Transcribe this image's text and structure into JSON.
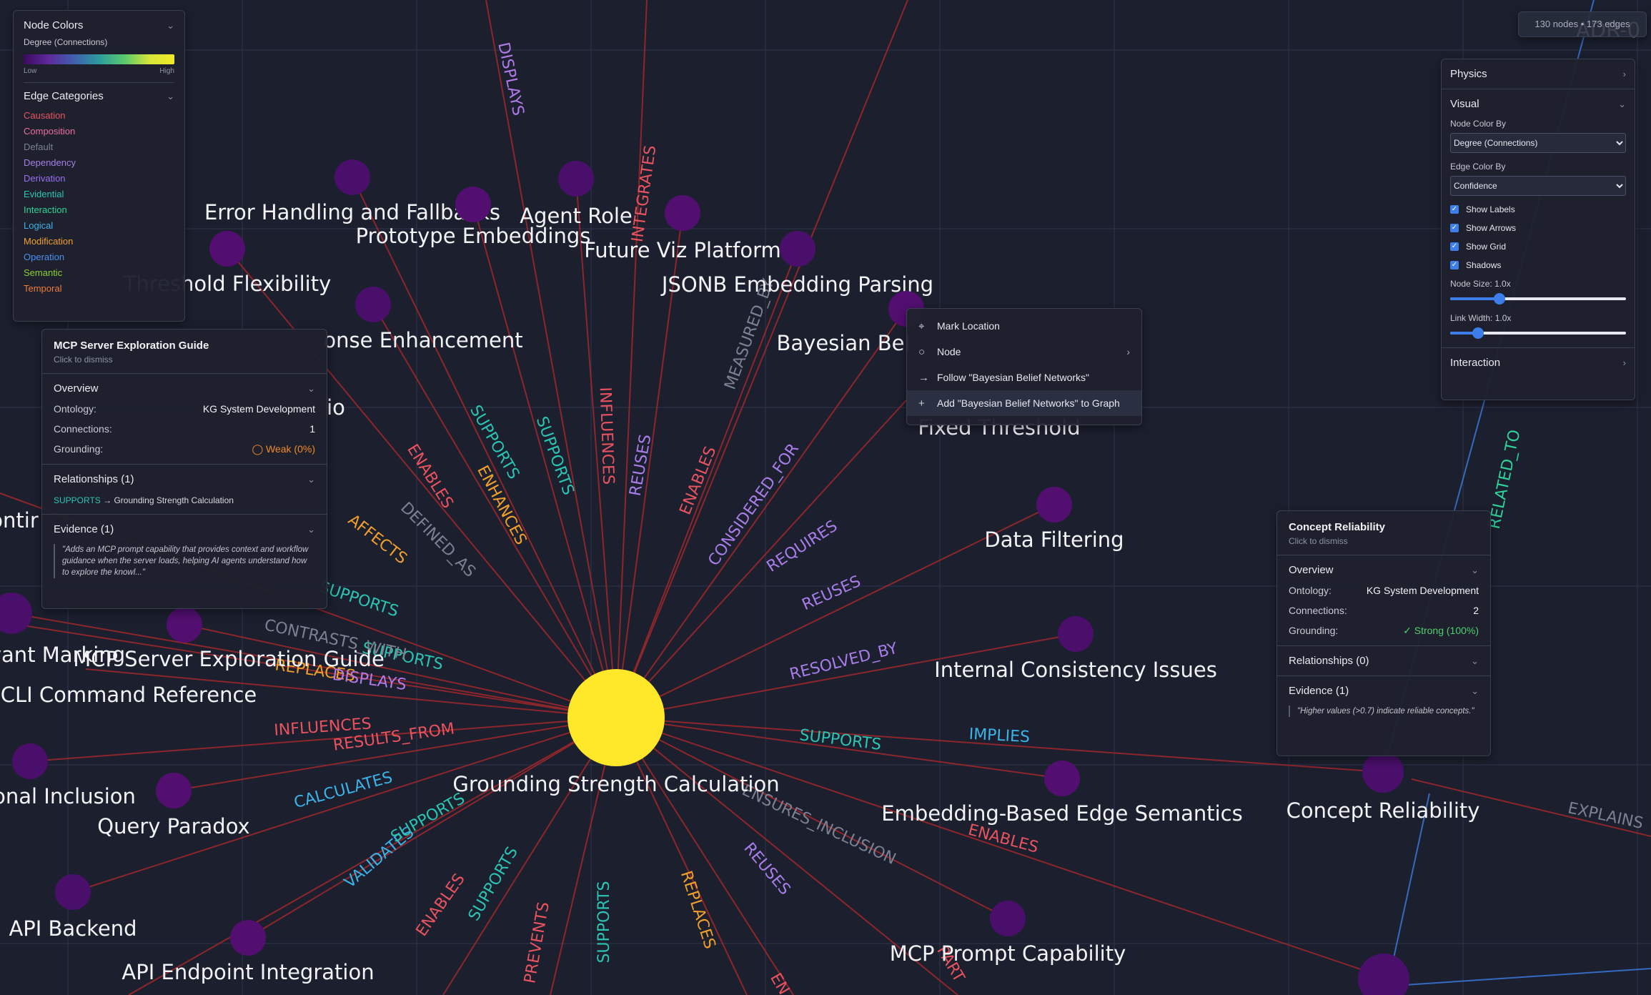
{
  "stats": "130 nodes • 173 edges",
  "legend": {
    "node_colors_title": "Node Colors",
    "metric": "Degree (Connections)",
    "low": "Low",
    "high": "High",
    "edge_categories_title": "Edge Categories",
    "categories": [
      {
        "label": "Causation",
        "color": "#e8535f"
      },
      {
        "label": "Composition",
        "color": "#ec6d9e"
      },
      {
        "label": "Default",
        "color": "#7c8192"
      },
      {
        "label": "Dependency",
        "color": "#a77de8"
      },
      {
        "label": "Derivation",
        "color": "#9a6ef0"
      },
      {
        "label": "Evidential",
        "color": "#29c4b2"
      },
      {
        "label": "Interaction",
        "color": "#2fd39a"
      },
      {
        "label": "Logical",
        "color": "#3bb3e8"
      },
      {
        "label": "Modification",
        "color": "#f0a02a"
      },
      {
        "label": "Operation",
        "color": "#4b8ff0"
      },
      {
        "label": "Semantic",
        "color": "#8ccf2e"
      },
      {
        "label": "Temporal",
        "color": "#f07a3a"
      }
    ]
  },
  "mcp_panel": {
    "title": "MCP Server Exploration Guide",
    "hint": "Click to dismiss",
    "overview": "Overview",
    "ontology_label": "Ontology:",
    "ontology": "KG System Development",
    "connections_label": "Connections:",
    "connections": "1",
    "grounding_label": "Grounding:",
    "grounding": "◯ Weak (0%)",
    "relationships": "Relationships (1)",
    "rel_type": "SUPPORTS",
    "rel_target": "→ Grounding Strength Calculation",
    "evidence": "Evidence (1)",
    "quote": "\"Adds an MCP prompt capability that provides context and workflow guidance when the server loads, helping AI agents understand how to explore the knowl...\""
  },
  "cr_panel": {
    "title": "Concept Reliability",
    "hint": "Click to dismiss",
    "overview": "Overview",
    "ontology_label": "Ontology:",
    "ontology": "KG System Development",
    "connections_label": "Connections:",
    "connections": "2",
    "grounding_label": "Grounding:",
    "grounding": "✓ Strong (100%)",
    "relationships": "Relationships (0)",
    "evidence": "Evidence (1)",
    "quote": "\"Higher values (>0.7) indicate reliable concepts.\""
  },
  "context_menu": {
    "mark": "Mark Location",
    "node": "Node",
    "follow": "Follow \"Bayesian Belief Networks\"",
    "add": "Add \"Bayesian Belief Networks\" to Graph"
  },
  "settings": {
    "physics": "Physics",
    "visual": "Visual",
    "node_color_by_label": "Node Color By",
    "node_color_by": "Degree (Connections)",
    "edge_color_by_label": "Edge Color By",
    "edge_color_by": "Confidence",
    "show_labels": "Show Labels",
    "show_arrows": "Show Arrows",
    "show_grid": "Show Grid",
    "shadows": "Shadows",
    "node_size": "Node Size: 1.0x",
    "node_size_level": 0.28,
    "link_width": "Link Width: 1.0x",
    "link_width_level": 0.16,
    "interaction": "Interaction"
  },
  "graph": {
    "center": {
      "label": "Grounding Strength Calculation",
      "color": "#ffe82a"
    },
    "nodes": [
      {
        "label": "Error Handling and Fallbacks"
      },
      {
        "label": "Prototype Embeddings"
      },
      {
        "label": "Agent Role"
      },
      {
        "label": "Future Viz Platform"
      },
      {
        "label": "JSONB Embedding Parsing"
      },
      {
        "label": "Threshold Flexibility"
      },
      {
        "label": "onse Enhancement"
      },
      {
        "label": "Bayesian Bel"
      },
      {
        "label": "Fixed Threshold"
      },
      {
        "label": "Data Filtering"
      },
      {
        "label": "Internal Consistency Issues"
      },
      {
        "label": "Embedding-Based Edge Semantics"
      },
      {
        "label": "Concept Reliability"
      },
      {
        "label": "MCP Server Exploration Guide"
      },
      {
        "label": "vant Marking"
      },
      {
        "label": "CLI Command Reference"
      },
      {
        "label": "onal Inclusion"
      },
      {
        "label": "Query Paradox"
      },
      {
        "label": "API Backend"
      },
      {
        "label": "API Endpoint Integration"
      },
      {
        "label": "MCP Prompt Capability"
      },
      {
        "label": "ADR-0"
      },
      {
        "label": "ontir"
      },
      {
        "label": "io"
      }
    ],
    "edge_labels": [
      {
        "text": "DISPLAYS",
        "color": "#b07ae8"
      },
      {
        "text": "INTEGRATES",
        "color": "#e8535f"
      },
      {
        "text": "MEASURED_BY",
        "color": "#7c8192"
      },
      {
        "text": "SUPPORTS",
        "color": "#29c4b2"
      },
      {
        "text": "SUPPORTS",
        "color": "#29c4b2"
      },
      {
        "text": "INFLUENCES",
        "color": "#e8535f"
      },
      {
        "text": "REUSES",
        "color": "#a77de8"
      },
      {
        "text": "ENABLES",
        "color": "#e8535f"
      },
      {
        "text": "CONSIDERED_FOR",
        "color": "#a77de8"
      },
      {
        "text": "ENABLES",
        "color": "#e8535f"
      },
      {
        "text": "ENHANCES",
        "color": "#f0a02a"
      },
      {
        "text": "DEFINED_AS",
        "color": "#7c8192"
      },
      {
        "text": "AFFECTS",
        "color": "#f0a02a"
      },
      {
        "text": "REQUIRES",
        "color": "#a77de8"
      },
      {
        "text": "REUSES",
        "color": "#a77de8"
      },
      {
        "text": "RESOLVED_BY",
        "color": "#a77de8"
      },
      {
        "text": "SUPPORTS",
        "color": "#29c4b2"
      },
      {
        "text": "IMPLIES",
        "color": "#3bb3e8"
      },
      {
        "text": "ENSURES_INCLUSION",
        "color": "#7c8192"
      },
      {
        "text": "ENABLES",
        "color": "#e8535f"
      },
      {
        "text": "REUSES",
        "color": "#a77de8"
      },
      {
        "text": "REPLACES",
        "color": "#f0a02a"
      },
      {
        "text": "SUPPORTS",
        "color": "#29c4b2"
      },
      {
        "text": "PREVENTS",
        "color": "#e8535f"
      },
      {
        "text": "SUPPORTS",
        "color": "#29c4b2"
      },
      {
        "text": "ENABLES",
        "color": "#e8535f"
      },
      {
        "text": "VALIDATES",
        "color": "#3bb3e8"
      },
      {
        "text": "SUPPORTS",
        "color": "#29c4b2"
      },
      {
        "text": "CALCULATES",
        "color": "#3bb3e8"
      },
      {
        "text": "RESULTS_FROM",
        "color": "#e8535f"
      },
      {
        "text": "INFLUENCES",
        "color": "#e8535f"
      },
      {
        "text": "REPLACES",
        "color": "#f0a02a"
      },
      {
        "text": "DISPLAYS",
        "color": "#b07ae8"
      },
      {
        "text": "SUPPORTS",
        "color": "#29c4b2"
      },
      {
        "text": "CONTRASTS_WITH",
        "color": "#7c8192"
      },
      {
        "text": "SUPPORTS",
        "color": "#29c4b2"
      },
      {
        "text": "RELATED_TO",
        "color": "#2fd39a"
      },
      {
        "text": "EXPLAINS",
        "color": "#7c8192"
      },
      {
        "text": "PART",
        "color": "#e8535f"
      },
      {
        "text": "EN",
        "color": "#e8535f"
      }
    ]
  }
}
